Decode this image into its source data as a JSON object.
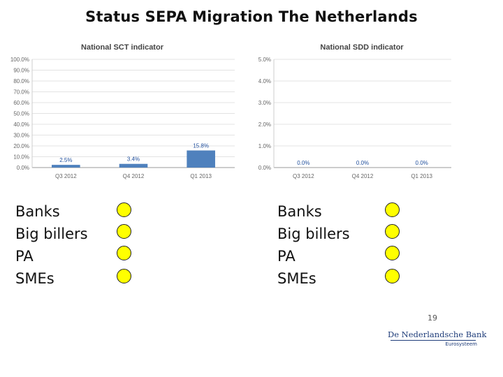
{
  "page": {
    "title": "Status SEPA Migration The Netherlands",
    "page_number": "19"
  },
  "chart_data": [
    {
      "type": "bar",
      "title": "National SCT indicator",
      "categories": [
        "Q3 2012",
        "Q4 2012",
        "Q1 2013"
      ],
      "values": [
        2.5,
        3.4,
        15.8
      ],
      "data_labels": [
        "2.5%",
        "3.4%",
        "15.8%"
      ],
      "yticks": [
        "0.0%",
        "10.0%",
        "20.0%",
        "30.0%",
        "40.0%",
        "50.0%",
        "60.0%",
        "70.0%",
        "80.0%",
        "90.0%",
        "100.0%"
      ],
      "ylim": [
        0,
        100
      ],
      "grid": true,
      "bar_color": "#4f81bd"
    },
    {
      "type": "bar",
      "title": "National SDD indicator",
      "categories": [
        "Q3 2012",
        "Q4 2012",
        "Q1 2013"
      ],
      "values": [
        0.0,
        0.0,
        0.0
      ],
      "data_labels": [
        "0.0%",
        "0.0%",
        "0.0%"
      ],
      "yticks": [
        "0.0%",
        "1.0%",
        "2.0%",
        "3.0%",
        "4.0%",
        "5.0%"
      ],
      "ylim": [
        0,
        5
      ],
      "grid": true,
      "bar_color": "#4f81bd"
    }
  ],
  "left_list": [
    "Banks",
    "Big billers",
    "PA",
    "SMEs"
  ],
  "right_list": [
    "Banks",
    "Big billers",
    "PA",
    "SMEs"
  ],
  "status_color": "#ffff00",
  "logo": {
    "name": "De Nederlandsche Bank",
    "tagline": "Eurosysteem"
  }
}
